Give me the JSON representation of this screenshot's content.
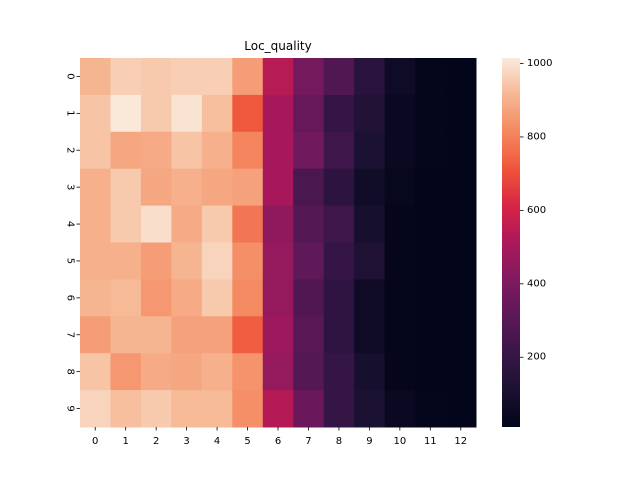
{
  "chart_data": {
    "type": "heatmap",
    "title": "Loc_quality",
    "xlabel": "",
    "ylabel": "",
    "x_categories": [
      "0",
      "1",
      "2",
      "3",
      "4",
      "5",
      "6",
      "7",
      "8",
      "9",
      "10",
      "11",
      "12"
    ],
    "y_categories": [
      "0",
      "1",
      "2",
      "3",
      "4",
      "5",
      "6",
      "7",
      "8",
      "9"
    ],
    "values": [
      [
        910,
        960,
        950,
        960,
        960,
        860,
        540,
        380,
        280,
        160,
        60,
        20,
        10
      ],
      [
        940,
        1010,
        950,
        1000,
        930,
        720,
        500,
        340,
        200,
        130,
        40,
        15,
        10
      ],
      [
        940,
        880,
        890,
        940,
        900,
        810,
        500,
        370,
        230,
        110,
        45,
        15,
        10
      ],
      [
        900,
        950,
        880,
        900,
        880,
        870,
        500,
        260,
        170,
        70,
        25,
        10,
        10
      ],
      [
        900,
        950,
        990,
        890,
        950,
        780,
        450,
        290,
        230,
        90,
        20,
        10,
        10
      ],
      [
        900,
        900,
        860,
        910,
        970,
        830,
        460,
        320,
        200,
        120,
        20,
        10,
        10
      ],
      [
        910,
        920,
        850,
        890,
        950,
        820,
        460,
        280,
        180,
        60,
        20,
        10,
        10
      ],
      [
        860,
        910,
        910,
        870,
        870,
        730,
        480,
        300,
        180,
        60,
        20,
        10,
        10
      ],
      [
        940,
        850,
        890,
        880,
        900,
        840,
        460,
        290,
        200,
        90,
        20,
        10,
        10
      ],
      [
        970,
        930,
        950,
        920,
        920,
        830,
        530,
        350,
        200,
        110,
        40,
        15,
        10
      ]
    ],
    "colorbar": {
      "min": 10,
      "max": 1015,
      "ticks": [
        200,
        400,
        600,
        800,
        1000
      ],
      "colormap": "rocket"
    },
    "grid": false,
    "legend": "colorbar-right"
  }
}
